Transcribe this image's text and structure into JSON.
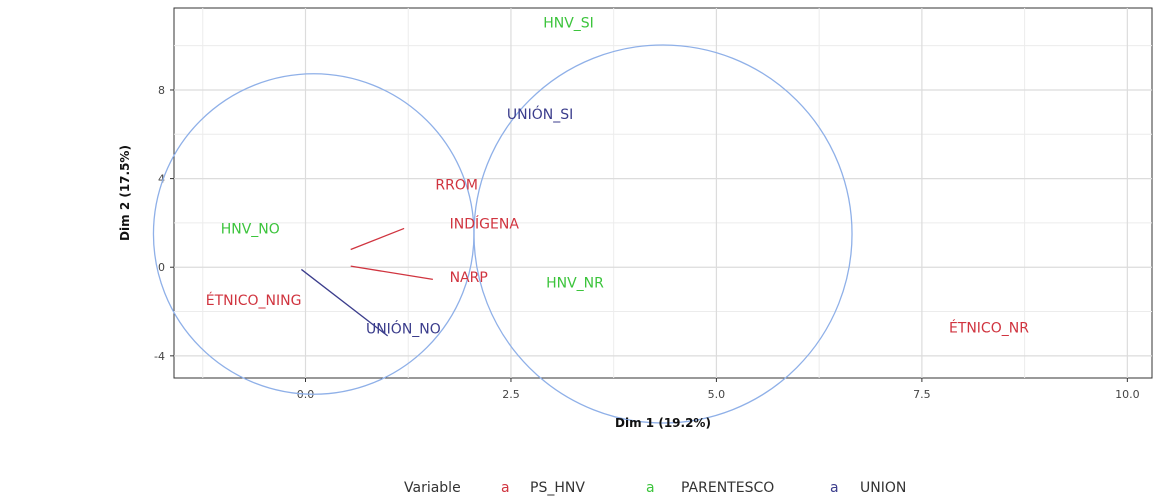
{
  "chart_data": {
    "type": "scatter",
    "title": "",
    "xlabel": "Dim 1 (19.2%)",
    "ylabel": "Dim 2 (17.5%)",
    "xlim": [
      -1.6,
      10.3
    ],
    "ylim": [
      -5.0,
      11.7
    ],
    "x_ticks": [
      0.0,
      2.5,
      5.0,
      7.5,
      10.0
    ],
    "x_tick_labels": [
      "0.0",
      "2.5",
      "5.0",
      "7.5",
      "10.0"
    ],
    "y_ticks": [
      -4,
      0,
      4,
      8
    ],
    "y_tick_labels": [
      "-4",
      "0",
      "4",
      "8"
    ],
    "grid": true,
    "legend": {
      "title": "Variable",
      "placement": "bottom",
      "key_glyph": "a",
      "entries": [
        {
          "name": "PS_HNV",
          "color": "#d0343f"
        },
        {
          "name": "PARENTESCO",
          "color": "#3cc43c"
        },
        {
          "name": "UNION",
          "color": "#3b3d8c"
        }
      ]
    },
    "series": [
      {
        "name": "PS_HNV",
        "color": "#d0343f",
        "points": [
          {
            "label": "RROM",
            "x": 0.55,
            "y": 0.9
          },
          {
            "label": "INDÍGENA",
            "x": 2.2,
            "y": 0.9
          },
          {
            "label": "NARP",
            "x": 0.55,
            "y": 0.05
          },
          {
            "label": "ÉTNICO_NING",
            "x": 0.05,
            "y": -0.25
          },
          {
            "label": "ÉTNICO_NR",
            "x": 8.9,
            "y": -3.3
          }
        ]
      },
      {
        "name": "PARENTESCO",
        "color": "#3cc43c",
        "points": [
          {
            "label": "HNV_SI",
            "x": 3.2,
            "y": 10.5
          },
          {
            "label": "HNV_NO",
            "x": -0.1,
            "y": 0.8
          },
          {
            "label": "HNV_NR",
            "x": 4.35,
            "y": -1.0
          }
        ]
      },
      {
        "name": "UNION",
        "color": "#3b3d8c",
        "points": [
          {
            "label": "UNIÓN_SI",
            "x": 3.0,
            "y": 6.2
          },
          {
            "label": "UNIÓN_NO",
            "x": -0.05,
            "y": -0.1
          }
        ]
      }
    ],
    "circles": [
      {
        "cx": 0.1,
        "cy": 1.5,
        "r": 1.95
      },
      {
        "cx": 4.35,
        "cy": 1.5,
        "r": 2.3
      }
    ],
    "circle_color": "#8fb0e8"
  }
}
